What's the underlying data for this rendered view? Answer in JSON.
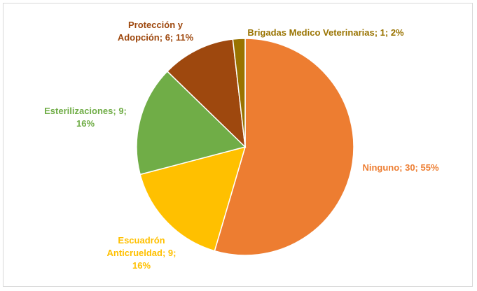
{
  "chart_data": {
    "type": "pie",
    "categories": [
      "Ninguno",
      "Escuadrón Anticrueldad",
      "Esterilizaciones",
      "Protección y Adopción",
      "Brigadas Medico Veterinarias"
    ],
    "values": [
      30,
      9,
      9,
      6,
      1
    ],
    "value_labels": [
      "Ninguno; 30; 55%",
      "Escuadrón Anticrueldad; 9; 16%",
      "Esterilizaciones; 9; 16%",
      "Protección y Adopción; 6; 11%",
      "Brigadas Medico Veterinarias; 1; 2%"
    ],
    "colors": [
      "#ED7D31",
      "#FFC000",
      "#70AD47",
      "#9E480E",
      "#997300"
    ]
  }
}
